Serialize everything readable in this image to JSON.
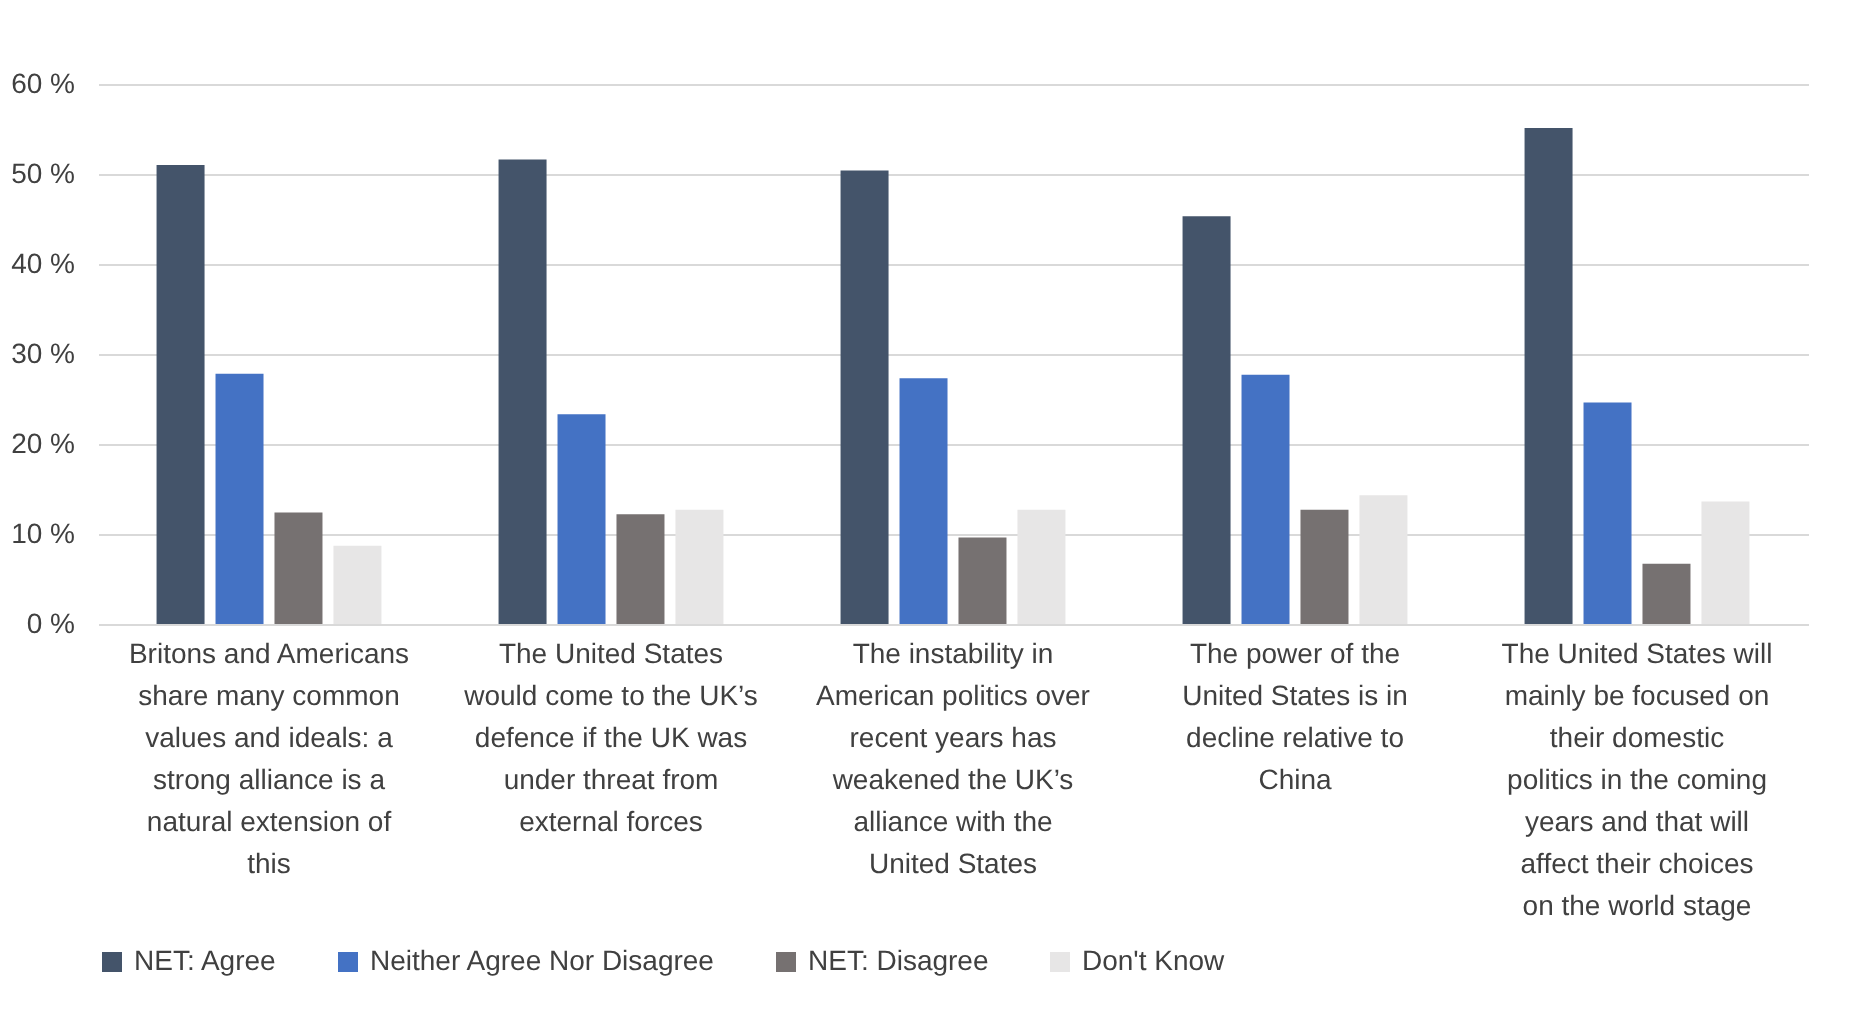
{
  "chart_data": {
    "type": "bar",
    "categories": [
      "Britons and Americans share many common values and ideals: a strong alliance is a natural extension of this",
      "The United States would come to the UK’s defence if the UK was under threat from external forces",
      "The instability in American politics over recent years has weakened the UK’s alliance with the United States",
      "The power of the United States is in decline relative to China",
      "The United States will mainly be focused on their domestic politics in the coming years and that will affect their choices on the world stage"
    ],
    "series": [
      {
        "name": "NET: Agree",
        "color": "#44546a",
        "values": [
          51.0,
          51.6,
          50.4,
          45.3,
          55.1
        ]
      },
      {
        "name": "Neither Agree Nor Disagree",
        "color": "#4472c4",
        "values": [
          27.8,
          23.3,
          27.3,
          27.7,
          24.6
        ]
      },
      {
        "name": "NET: Disagree",
        "color": "#767171",
        "values": [
          12.4,
          12.2,
          9.6,
          12.7,
          6.7
        ]
      },
      {
        "name": "Don't Know",
        "color": "#e7e6e6",
        "values": [
          8.7,
          12.7,
          12.7,
          14.3,
          13.6
        ]
      }
    ],
    "ylim": [
      0,
      60
    ],
    "yticks": [
      {
        "value": 0,
        "label": "0 %"
      },
      {
        "value": 10,
        "label": "10 %"
      },
      {
        "value": 20,
        "label": "20 %"
      },
      {
        "value": 30,
        "label": "30 %"
      },
      {
        "value": 40,
        "label": "40 %"
      },
      {
        "value": 50,
        "label": "50 %"
      },
      {
        "value": 60,
        "label": "60 %"
      }
    ],
    "grid": "y",
    "legend": "bottom"
  }
}
